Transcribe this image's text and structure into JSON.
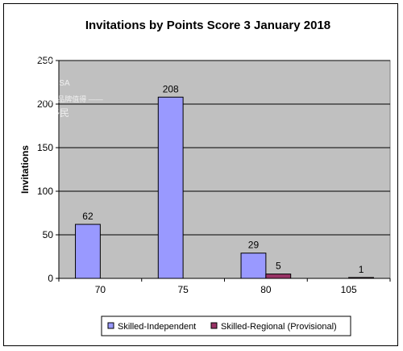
{
  "chart_data": {
    "type": "bar",
    "title": "Invitations by Points Score 3 January 2018",
    "xlabel": "",
    "ylabel": "Invitations",
    "categories": [
      "70",
      "75",
      "80",
      "105"
    ],
    "series": [
      {
        "name": "Skilled-Independent",
        "values": [
          62,
          208,
          29,
          0
        ],
        "labels": [
          "62",
          "208",
          "29",
          ""
        ],
        "color": "#9999ff"
      },
      {
        "name": "Skilled-Regional (Provisional)",
        "values": [
          0,
          0,
          5,
          1
        ],
        "labels": [
          "",
          "",
          "5",
          "1"
        ],
        "color": "#993366"
      }
    ],
    "ylim": [
      0,
      250
    ],
    "yticks": [
      "0",
      "50",
      "100",
      "150",
      "200",
      "250"
    ],
    "grid": true,
    "legend_position": "bottom",
    "plot_background": "#c0c0c0"
  },
  "watermark": {
    "brand": "GLOBEVISA",
    "line1": "—— 移民专家 品牌值得 ——",
    "line2": "环球移民"
  }
}
